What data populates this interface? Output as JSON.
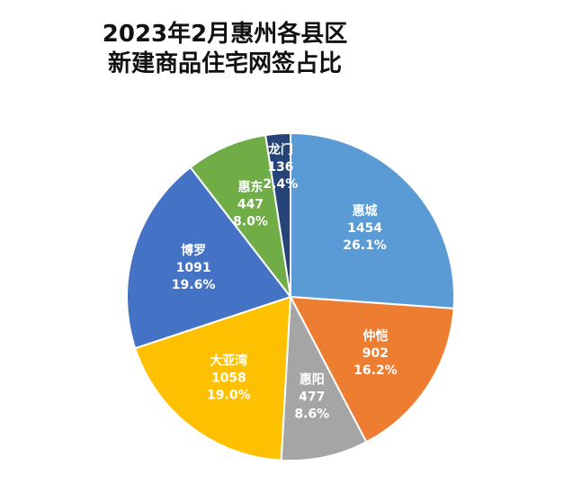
{
  "chart_data": {
    "type": "pie",
    "title": [
      "2023年2月惠州各县区",
      "新建商品住宅网签占比"
    ],
    "slices": [
      {
        "name": "惠城",
        "value": 1454,
        "percent": "26.1%",
        "color": "#5b9bd5"
      },
      {
        "name": "仲恺",
        "value": 902,
        "percent": "16.2%",
        "color": "#ed7d31"
      },
      {
        "name": "惠阳",
        "value": 477,
        "percent": "8.6%",
        "color": "#a5a5a5"
      },
      {
        "name": "大亚湾",
        "value": 1058,
        "percent": "19.0%",
        "color": "#ffc000"
      },
      {
        "name": "博罗",
        "value": 1091,
        "percent": "19.6%",
        "color": "#4472c4"
      },
      {
        "name": "惠东",
        "value": 447,
        "percent": "8.0%",
        "color": "#70ad47"
      },
      {
        "name": "龙门",
        "value": 136,
        "percent": "2.4%",
        "color": "#264478"
      }
    ],
    "start_angle_deg": 0,
    "direction": "clockwise"
  }
}
